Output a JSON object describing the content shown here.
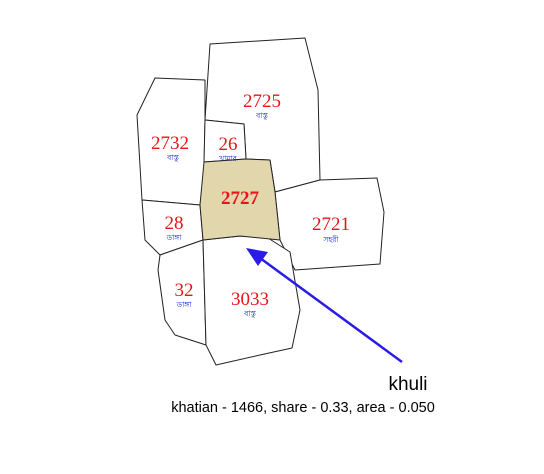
{
  "map": {
    "plots": [
      {
        "id": "2725",
        "number": "2725",
        "type": "বাস্তু",
        "highlighted": false
      },
      {
        "id": "2732",
        "number": "2732",
        "type": "বাস্তু",
        "highlighted": false
      },
      {
        "id": "26",
        "number": "26",
        "type": "খামার",
        "highlighted": false
      },
      {
        "id": "2727",
        "number": "2727",
        "type": "",
        "highlighted": true
      },
      {
        "id": "28",
        "number": "28",
        "type": "ডাঙ্গা",
        "highlighted": false
      },
      {
        "id": "2721",
        "number": "2721",
        "type": "সহরী",
        "highlighted": false
      },
      {
        "id": "32",
        "number": "32",
        "type": "ডাঙ্গা",
        "highlighted": false
      },
      {
        "id": "3033",
        "number": "3033",
        "type": "বাস্তু",
        "highlighted": false
      }
    ],
    "colors": {
      "plot_number": "#e8141b",
      "plot_type": "#1a2ae0",
      "highlight_fill": "#e2d6ad",
      "arrow": "#2a1be6"
    }
  },
  "callout": {
    "title": "khuli",
    "details": "khatian - 1466, share - 0.33, area - 0.050",
    "target_plot": "2727"
  }
}
